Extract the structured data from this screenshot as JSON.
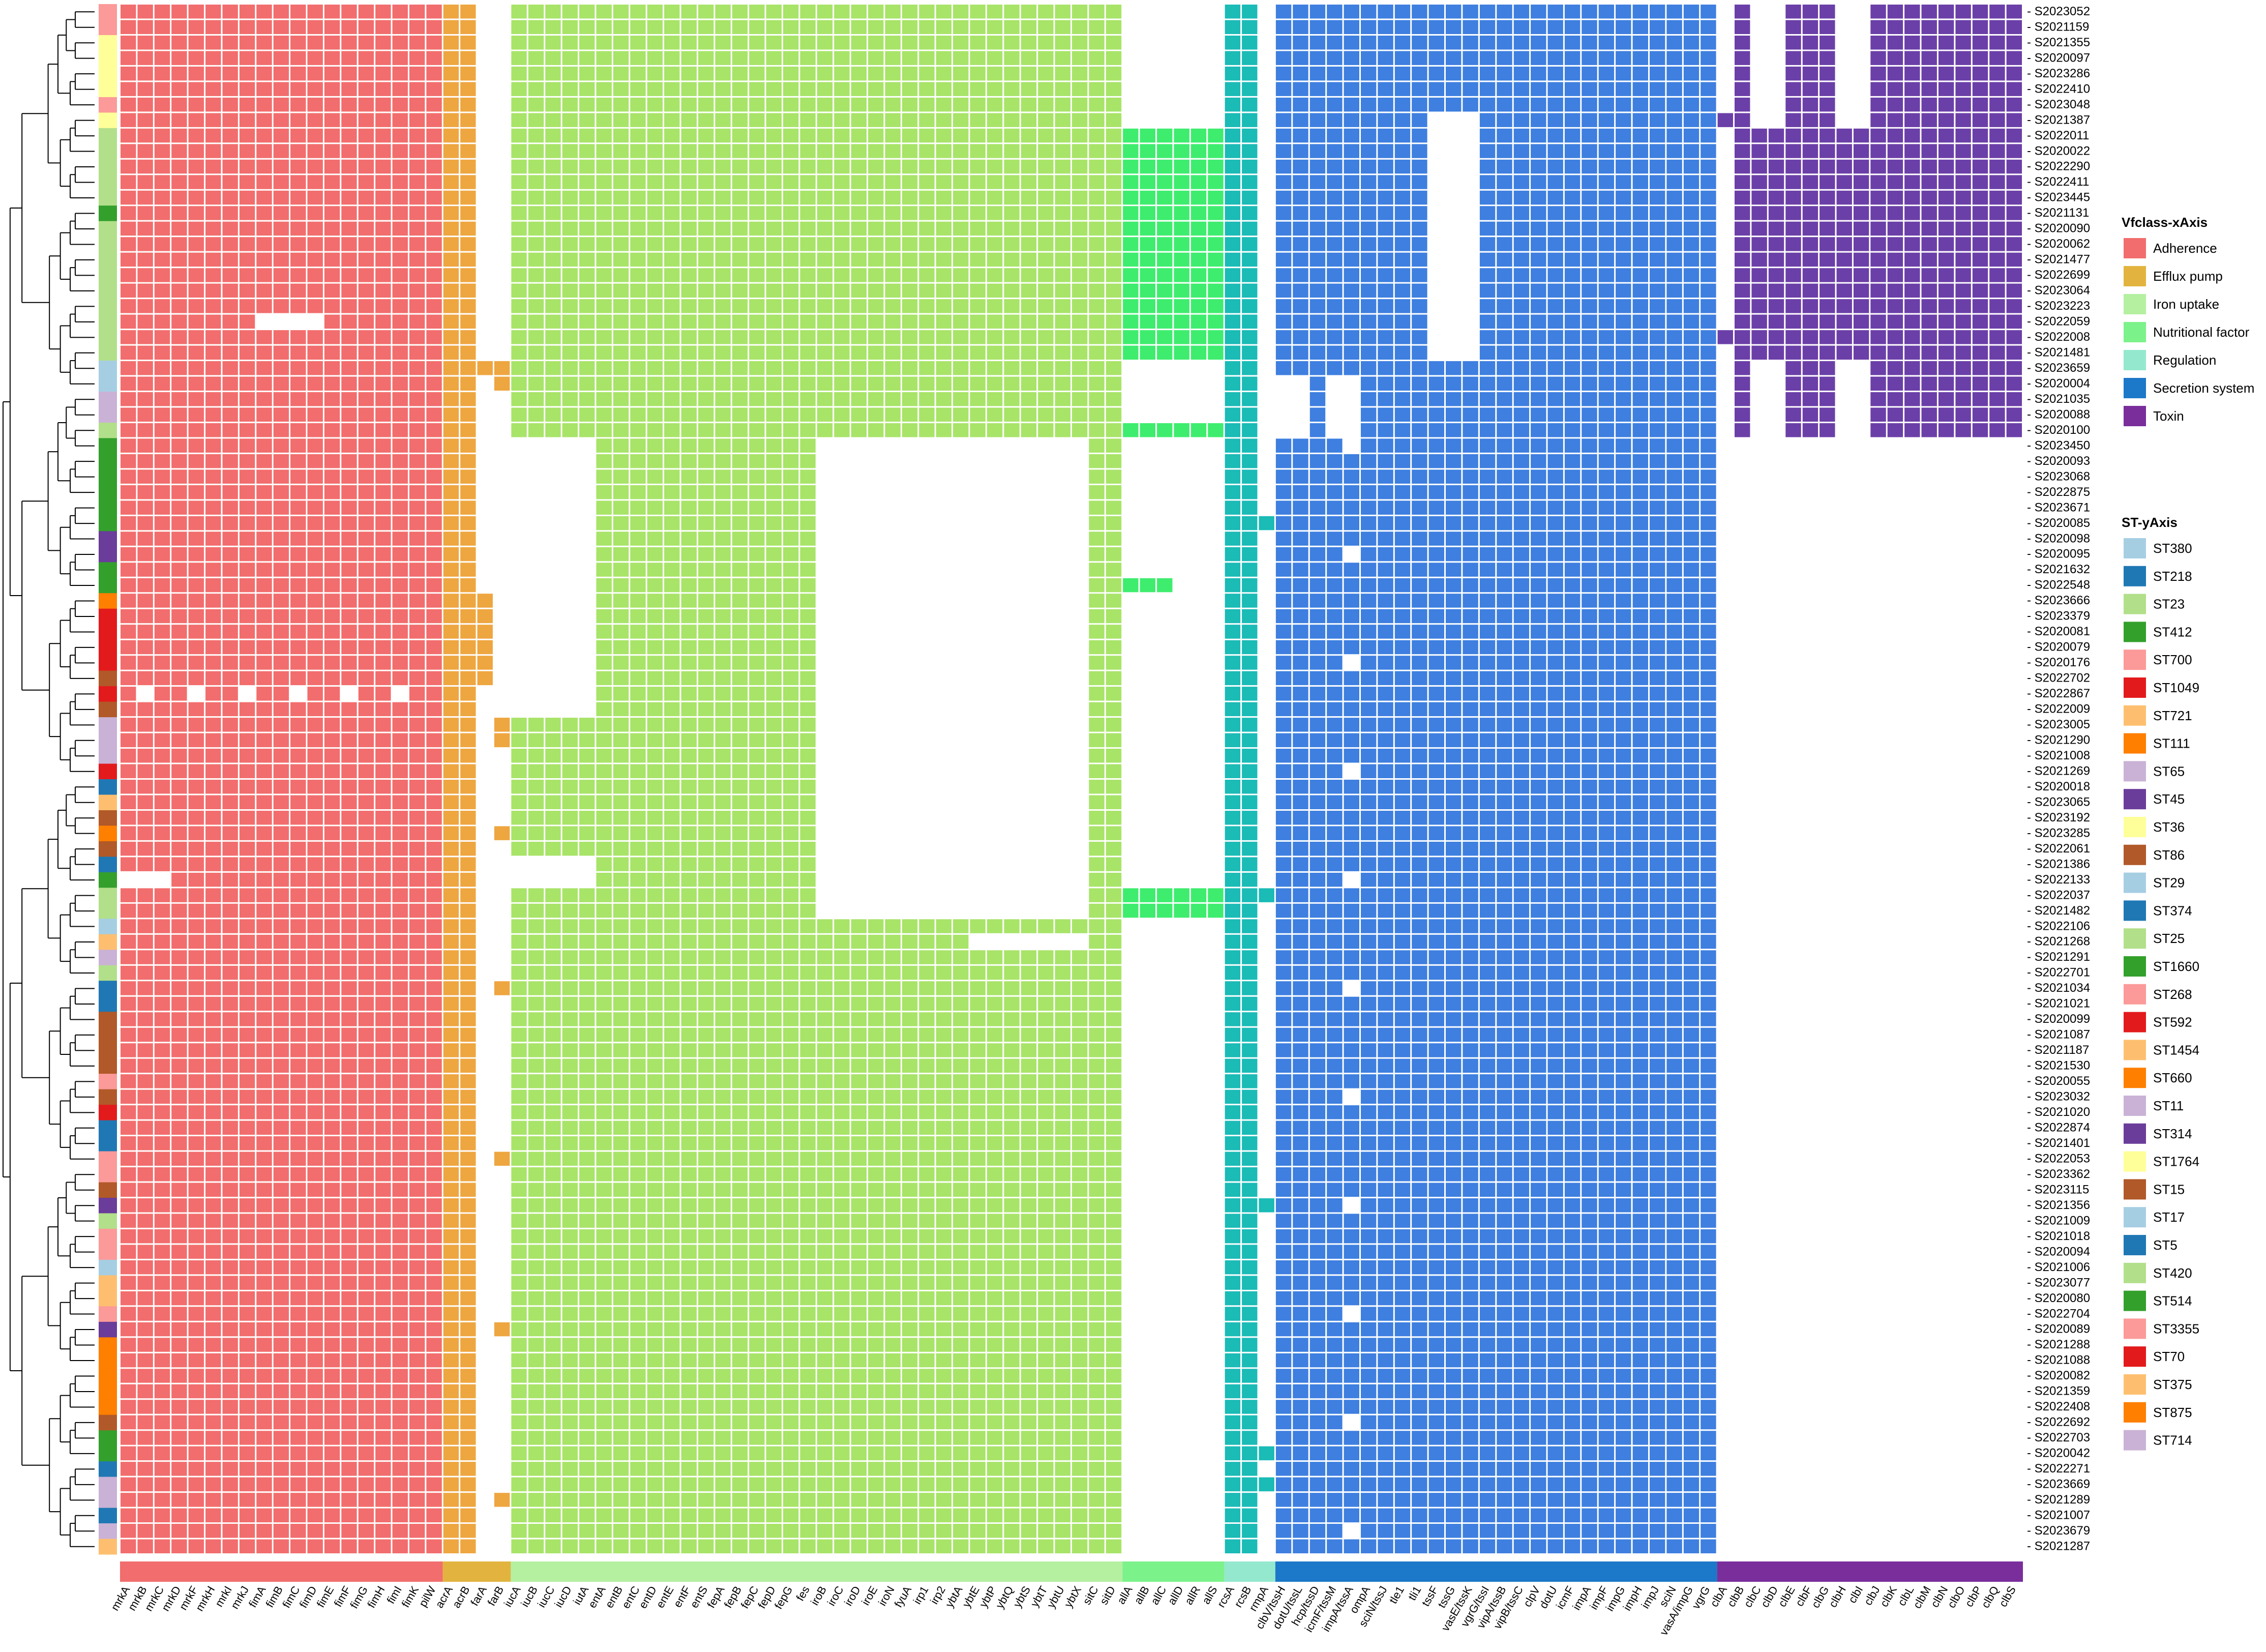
{
  "chart_data": {
    "type": "heatmap",
    "title": "",
    "xlabel": "",
    "ylabel": "",
    "x_annotation_title": "Vfclass-xAxis",
    "y_annotation_title": "ST-yAxis",
    "vf_classes": [
      {
        "name": "Adherence",
        "color": "#F26D6D"
      },
      {
        "name": "Efflux pump",
        "color": "#E2B43F"
      },
      {
        "name": "Iron uptake",
        "color": "#B4F0A0"
      },
      {
        "name": "Nutritional factor",
        "color": "#7CF28A"
      },
      {
        "name": "Regulation",
        "color": "#94E8CE"
      },
      {
        "name": "Secretion system",
        "color": "#1C78C8"
      },
      {
        "name": "Toxin",
        "color": "#7A2E9C"
      }
    ],
    "cell_colors": {
      "Adherence": "#F26D6D",
      "Efflux pump": "#EEA640",
      "Iron uptake": "#A8E468",
      "Nutritional factor": "#3EED6E",
      "Regulation": "#1BBBB6",
      "Secretion system": "#3E7FE0",
      "Toxin": "#6B3FA8"
    },
    "st_legend": [
      {
        "name": "ST380",
        "color": "#A6CEE3"
      },
      {
        "name": "ST218",
        "color": "#1F78B4"
      },
      {
        "name": "ST23",
        "color": "#B2DF8A"
      },
      {
        "name": "ST412",
        "color": "#33A02C"
      },
      {
        "name": "ST700",
        "color": "#FB9A99"
      },
      {
        "name": "ST1049",
        "color": "#E31A1C"
      },
      {
        "name": "ST721",
        "color": "#FDBF6F"
      },
      {
        "name": "ST111",
        "color": "#FF7F00"
      },
      {
        "name": "ST65",
        "color": "#CAB2D6"
      },
      {
        "name": "ST45",
        "color": "#6A3D9A"
      },
      {
        "name": "ST36",
        "color": "#FFFF99"
      },
      {
        "name": "ST86",
        "color": "#B15928"
      },
      {
        "name": "ST29",
        "color": "#A6CEE3"
      },
      {
        "name": "ST374",
        "color": "#1F78B4"
      },
      {
        "name": "ST25",
        "color": "#B2DF8A"
      },
      {
        "name": "ST1660",
        "color": "#33A02C"
      },
      {
        "name": "ST268",
        "color": "#FB9A99"
      },
      {
        "name": "ST592",
        "color": "#E31A1C"
      },
      {
        "name": "ST1454",
        "color": "#FDBF6F"
      },
      {
        "name": "ST660",
        "color": "#FF7F00"
      },
      {
        "name": "ST11",
        "color": "#CAB2D6"
      },
      {
        "name": "ST314",
        "color": "#6A3D9A"
      },
      {
        "name": "ST1764",
        "color": "#FFFF99"
      },
      {
        "name": "ST15",
        "color": "#B15928"
      },
      {
        "name": "ST17",
        "color": "#A6CEE3"
      },
      {
        "name": "ST5",
        "color": "#1F78B4"
      },
      {
        "name": "ST420",
        "color": "#B2DF8A"
      },
      {
        "name": "ST514",
        "color": "#33A02C"
      },
      {
        "name": "ST3355",
        "color": "#FB9A99"
      },
      {
        "name": "ST70",
        "color": "#E31A1C"
      },
      {
        "name": "ST375",
        "color": "#FDBF6F"
      },
      {
        "name": "ST875",
        "color": "#FF7F00"
      },
      {
        "name": "ST714",
        "color": "#CAB2D6"
      }
    ],
    "genes": [
      "mrkA",
      "mrkB",
      "mrkC",
      "mrkD",
      "mrkF",
      "mrkH",
      "mrkI",
      "mrkJ",
      "fimA",
      "fimB",
      "fimC",
      "fimD",
      "fimE",
      "fimF",
      "fimG",
      "fimH",
      "fimI",
      "fimK",
      "pilW",
      "acrA",
      "acrB",
      "farA",
      "farB",
      "iucA",
      "iucB",
      "iucC",
      "iucD",
      "iutA",
      "entA",
      "entB",
      "entC",
      "entD",
      "entE",
      "entF",
      "entS",
      "fepA",
      "fepB",
      "fepC",
      "fepD",
      "fepG",
      "fes",
      "iroB",
      "iroC",
      "iroD",
      "iroE",
      "iroN",
      "fyuA",
      "irp1",
      "irp2",
      "ybtA",
      "ybtE",
      "ybtP",
      "ybtQ",
      "ybtS",
      "ybtT",
      "ybtU",
      "ybtX",
      "sitC",
      "sitD",
      "allA",
      "allB",
      "allC",
      "allD",
      "allR",
      "allS",
      "rcsA",
      "rcsB",
      "rmpA",
      "clbV/tssH",
      "dotU/tssL",
      "hcp/tssD",
      "icmF/tssM",
      "impA/tssA",
      "ompA",
      "sciN/tssJ",
      "tle1",
      "tli1",
      "tssF",
      "tssG",
      "vasE/tssK",
      "vgrG/tssI",
      "vipA/tssB",
      "vipB/tssC",
      "clpV",
      "dotU",
      "icmF",
      "impA",
      "impF",
      "impG",
      "impH",
      "impJ",
      "sciN",
      "vasA/impG",
      "vgrG",
      "clbA",
      "clbB",
      "clbC",
      "clbD",
      "clbE",
      "clbF",
      "clbG",
      "clbH",
      "clbI",
      "clbJ",
      "clbK",
      "clbL",
      "clbM",
      "clbN",
      "clbO",
      "clbP",
      "clbQ",
      "clbS"
    ],
    "gene_classes": [
      "Adherence",
      "Adherence",
      "Adherence",
      "Adherence",
      "Adherence",
      "Adherence",
      "Adherence",
      "Adherence",
      "Adherence",
      "Adherence",
      "Adherence",
      "Adherence",
      "Adherence",
      "Adherence",
      "Adherence",
      "Adherence",
      "Adherence",
      "Adherence",
      "Adherence",
      "Efflux pump",
      "Efflux pump",
      "Efflux pump",
      "Efflux pump",
      "Iron uptake",
      "Iron uptake",
      "Iron uptake",
      "Iron uptake",
      "Iron uptake",
      "Iron uptake",
      "Iron uptake",
      "Iron uptake",
      "Iron uptake",
      "Iron uptake",
      "Iron uptake",
      "Iron uptake",
      "Iron uptake",
      "Iron uptake",
      "Iron uptake",
      "Iron uptake",
      "Iron uptake",
      "Iron uptake",
      "Iron uptake",
      "Iron uptake",
      "Iron uptake",
      "Iron uptake",
      "Iron uptake",
      "Iron uptake",
      "Iron uptake",
      "Iron uptake",
      "Iron uptake",
      "Iron uptake",
      "Iron uptake",
      "Iron uptake",
      "Iron uptake",
      "Iron uptake",
      "Iron uptake",
      "Iron uptake",
      "Iron uptake",
      "Iron uptake",
      "Nutritional factor",
      "Nutritional factor",
      "Nutritional factor",
      "Nutritional factor",
      "Nutritional factor",
      "Nutritional factor",
      "Regulation",
      "Regulation",
      "Regulation",
      "Secretion system",
      "Secretion system",
      "Secretion system",
      "Secretion system",
      "Secretion system",
      "Secretion system",
      "Secretion system",
      "Secretion system",
      "Secretion system",
      "Secretion system",
      "Secretion system",
      "Secretion system",
      "Secretion system",
      "Secretion system",
      "Secretion system",
      "Secretion system",
      "Secretion system",
      "Secretion system",
      "Secretion system",
      "Secretion system",
      "Secretion system",
      "Secretion system",
      "Secretion system",
      "Secretion system",
      "Secretion system",
      "Secretion system",
      "Toxin",
      "Toxin",
      "Toxin",
      "Toxin",
      "Toxin",
      "Toxin",
      "Toxin",
      "Toxin",
      "Toxin",
      "Toxin",
      "Toxin",
      "Toxin",
      "Toxin",
      "Toxin",
      "Toxin",
      "Toxin",
      "Toxin",
      "Toxin"
    ],
    "samples": [
      "S2023052",
      "S2021159",
      "S2021355",
      "S2020097",
      "S2023286",
      "S2022410",
      "S2023048",
      "S2021387",
      "S2022011",
      "S2020022",
      "S2022290",
      "S2022411",
      "S2023445",
      "S2021131",
      "S2020090",
      "S2020062",
      "S2021477",
      "S2022699",
      "S2023064",
      "S2023223",
      "S2022059",
      "S2022008",
      "S2021481",
      "S2023659",
      "S2020004",
      "S2021035",
      "S2020088",
      "S2020100",
      "S2023450",
      "S2020093",
      "S2023068",
      "S2022875",
      "S2023671",
      "S2020085",
      "S2020098",
      "S2020095",
      "S2021632",
      "S2022548",
      "S2023666",
      "S2023379",
      "S2020081",
      "S2020079",
      "S2020176",
      "S2022702",
      "S2022867",
      "S2022009",
      "S2023005",
      "S2021290",
      "S2021008",
      "S2021269",
      "S2020018",
      "S2023065",
      "S2023192",
      "S2023285",
      "S2022061",
      "S2021386",
      "S2022133",
      "S2022037",
      "S2021482",
      "S2022106",
      "S2021268",
      "S2021291",
      "S2022701",
      "S2021034",
      "S2021021",
      "S2020099",
      "S2021087",
      "S2021187",
      "S2021530",
      "S2020055",
      "S2023032",
      "S2021020",
      "S2022874",
      "S2021401",
      "S2022053",
      "S2023362",
      "S2023115",
      "S2021356",
      "S2021009",
      "S2021018",
      "S2020094",
      "S2021006",
      "S2023077",
      "S2020080",
      "S2022704",
      "S2020089",
      "S2021288",
      "S2021088",
      "S2020082",
      "S2021359",
      "S2022408",
      "S2022692",
      "S2022703",
      "S2020042",
      "S2022271",
      "S2023669",
      "S2021289",
      "S2021007",
      "S2023679",
      "S2021287"
    ],
    "sample_st": [
      "ST700",
      "ST700",
      "ST36",
      "ST36",
      "ST36",
      "ST36",
      "ST700",
      "ST36",
      "ST23",
      "ST23",
      "ST23",
      "ST23",
      "ST23",
      "ST412",
      "ST23",
      "ST23",
      "ST23",
      "ST23",
      "ST23",
      "ST23",
      "ST23",
      "ST23",
      "ST23",
      "ST380",
      "ST380",
      "ST65",
      "ST65",
      "ST23",
      "ST412",
      "ST412",
      "ST412",
      "ST412",
      "ST412",
      "ST412",
      "ST45",
      "ST45",
      "ST412",
      "ST412",
      "ST111",
      "ST1049",
      "ST1049",
      "ST1049",
      "ST1049",
      "ST86",
      "ST1049",
      "ST86",
      "ST65",
      "ST65",
      "ST65",
      "ST592",
      "ST218",
      "ST721",
      "ST86",
      "ST111",
      "ST86",
      "ST218",
      "ST412",
      "ST25",
      "ST23",
      "ST17",
      "ST1454",
      "ST11",
      "ST420",
      "ST5",
      "ST5",
      "ST15",
      "ST15",
      "ST15",
      "ST15",
      "ST268",
      "ST15",
      "ST592",
      "ST5",
      "ST5",
      "ST3355",
      "ST3355",
      "ST15",
      "ST45",
      "ST420",
      "ST3355",
      "ST3355",
      "ST29",
      "ST375",
      "ST375",
      "ST3355",
      "ST314",
      "ST875",
      "ST875",
      "ST875",
      "ST875",
      "ST875",
      "ST86",
      "ST514",
      "ST514",
      "ST218",
      "ST714",
      "ST714",
      "ST374",
      "ST714",
      "ST721"
    ]
  },
  "svg_labels": {
    "axis_tick_prefix": "-"
  }
}
